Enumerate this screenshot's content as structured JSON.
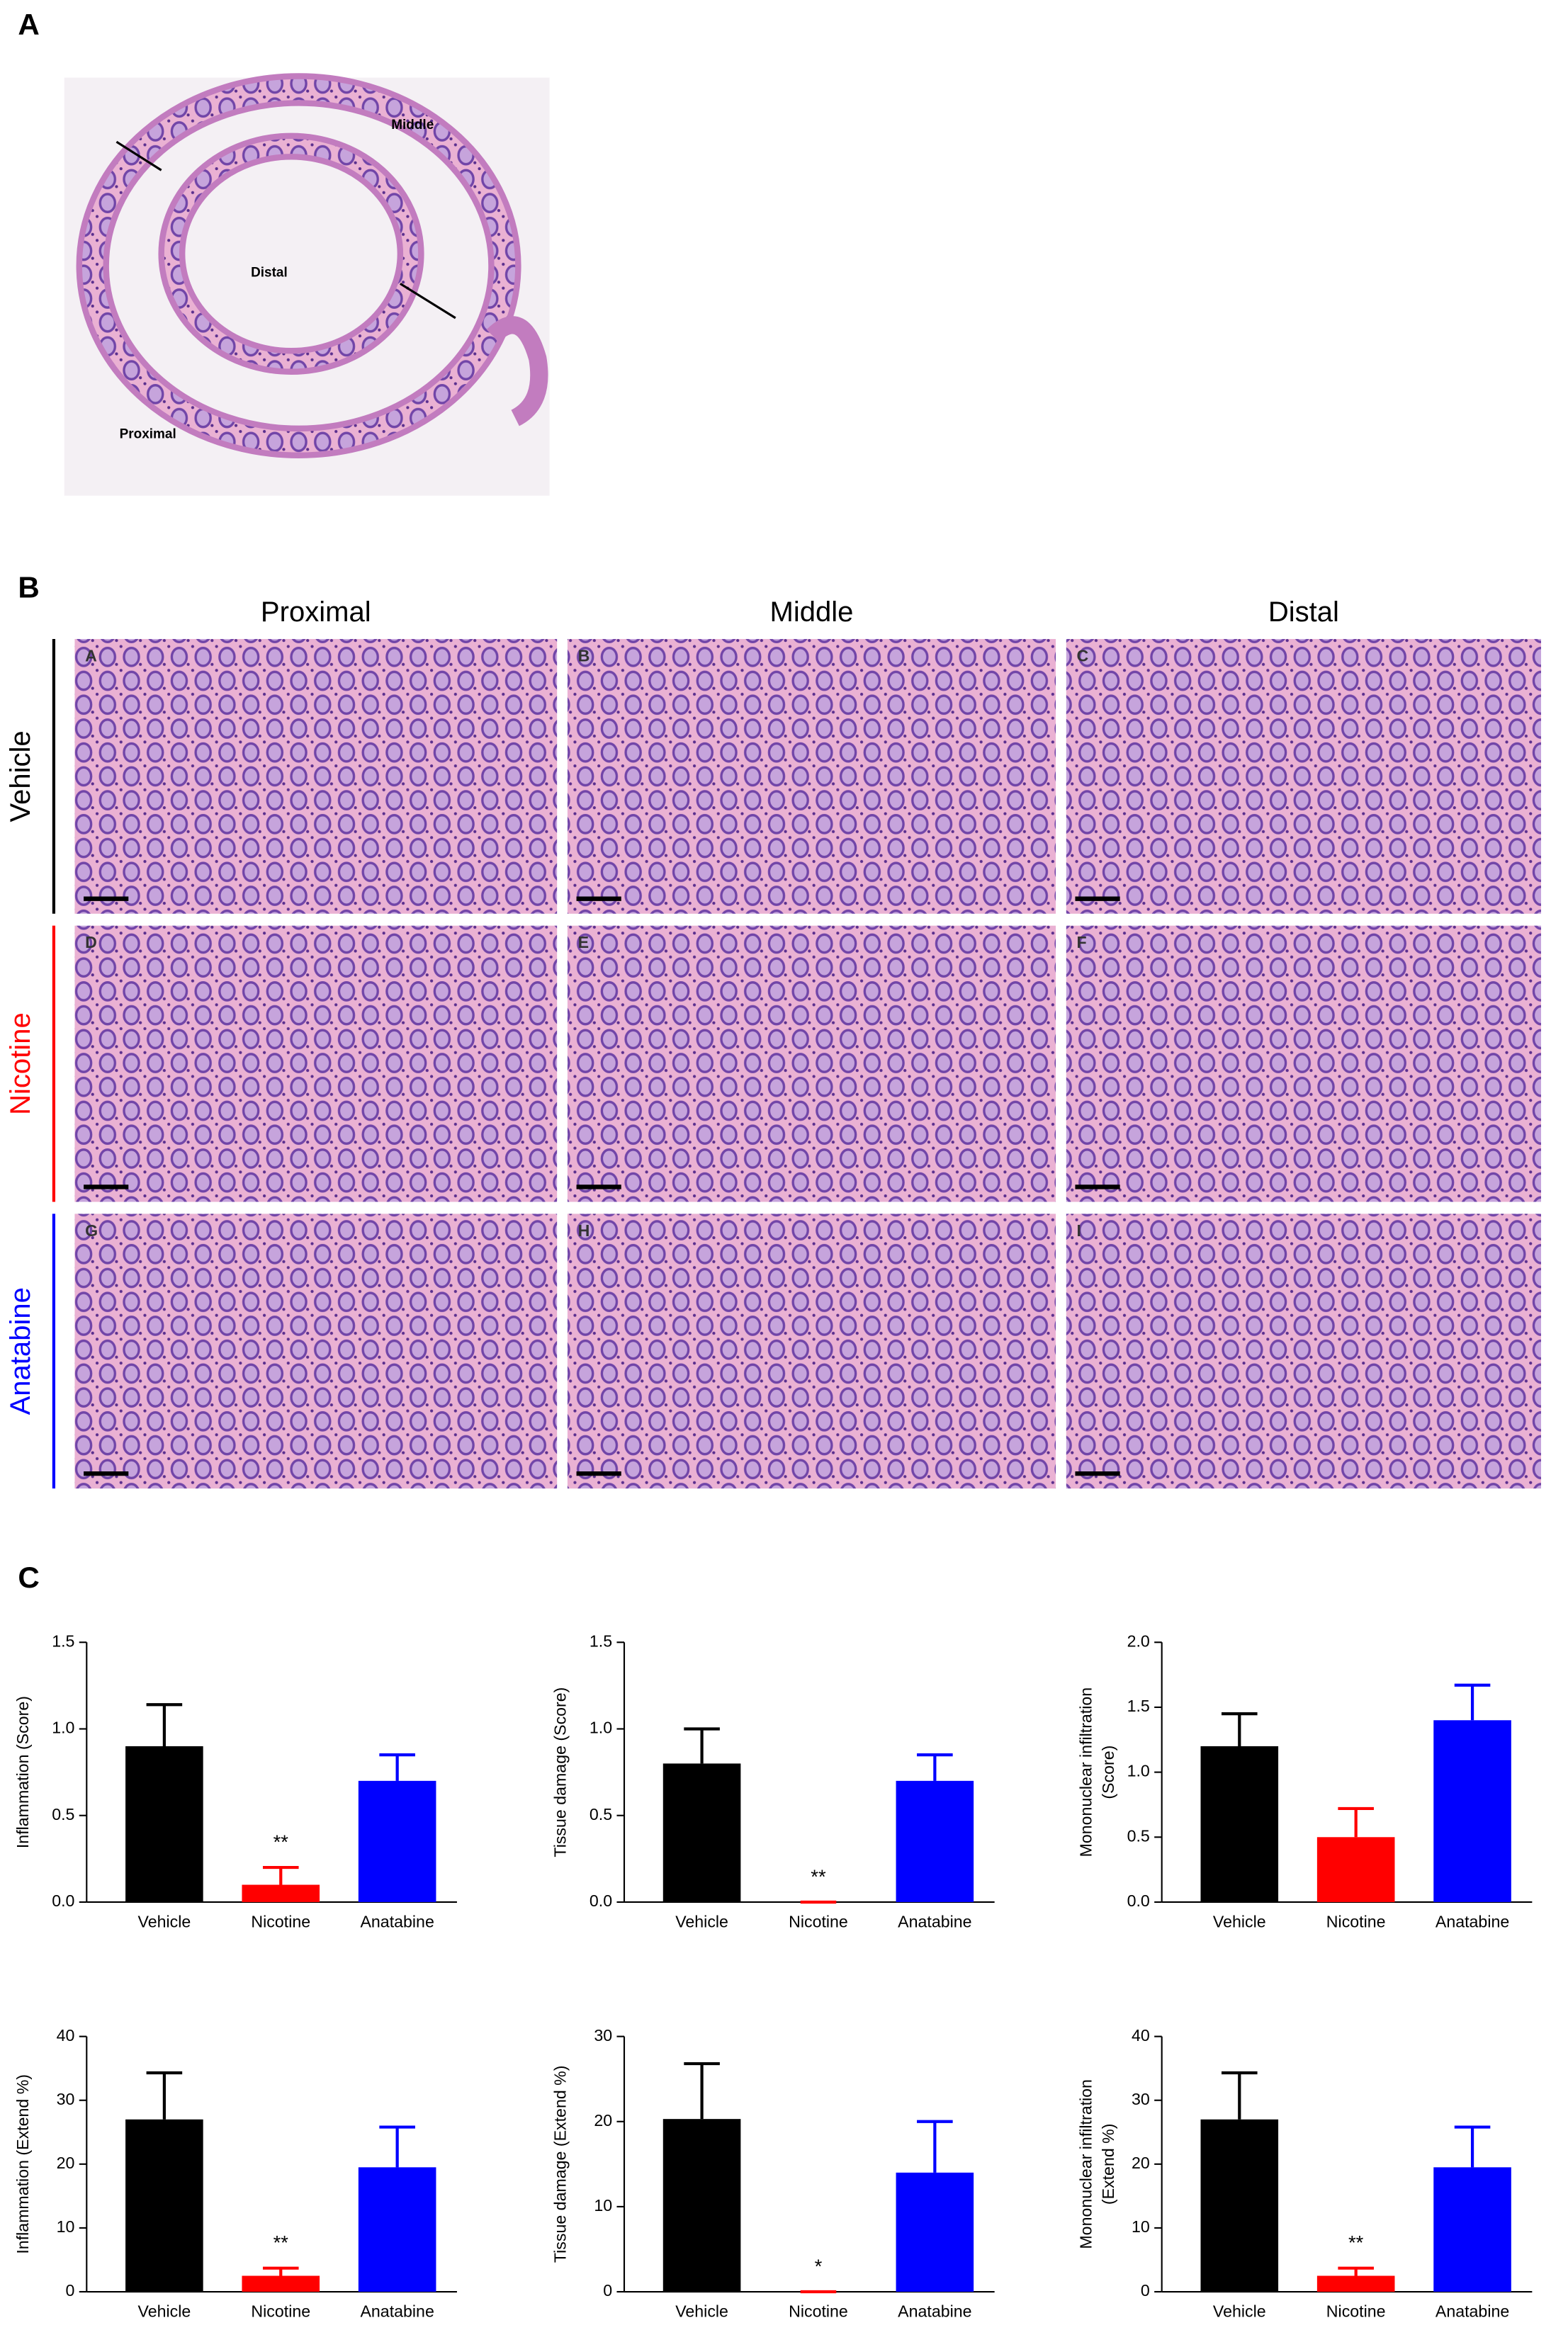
{
  "panel_labels": [
    "A",
    "B",
    "C"
  ],
  "panel_a": {
    "region_labels": [
      "Middle",
      "Distal",
      "Proximal"
    ]
  },
  "panel_b": {
    "columns": [
      "Proximal",
      "Middle",
      "Distal"
    ],
    "rows": [
      {
        "label": "Vehicle",
        "color": "#000000"
      },
      {
        "label": "Nicotine",
        "color": "#ff0000"
      },
      {
        "label": "Anatabine",
        "color": "#0000ff"
      }
    ],
    "subpanel_letters": [
      "A",
      "B",
      "C",
      "D",
      "E",
      "F",
      "G",
      "H",
      "I"
    ]
  },
  "chart_data": [
    {
      "type": "bar",
      "y_label": [
        "Inflammation (Score)"
      ],
      "categories": [
        "Vehicle",
        "Nicotine",
        "Anatabine"
      ],
      "values": [
        0.9,
        0.1,
        0.7
      ],
      "errors": [
        0.24,
        0.1,
        0.15
      ],
      "colors": [
        "#000000",
        "#ff0000",
        "#0000ff"
      ],
      "significance": [
        null,
        "**",
        null
      ],
      "ylim": [
        0,
        1.5
      ],
      "yticks": [
        {
          "value": 0,
          "label": "0.0"
        },
        0.5,
        {
          "value": 1,
          "label": "1.0"
        },
        1.5
      ]
    },
    {
      "type": "bar",
      "y_label": [
        "Tissue damage (Score)"
      ],
      "categories": [
        "Vehicle",
        "Nicotine",
        "Anatabine"
      ],
      "values": [
        0.8,
        0,
        0.7
      ],
      "errors": [
        0.2,
        0,
        0.15
      ],
      "colors": [
        "#000000",
        "#ff0000",
        "#0000ff"
      ],
      "significance": [
        null,
        "**",
        null
      ],
      "ylim": [
        0,
        1.5
      ],
      "yticks": [
        {
          "value": 0,
          "label": "0.0"
        },
        0.5,
        {
          "value": 1,
          "label": "1.0"
        },
        1.5
      ]
    },
    {
      "type": "bar",
      "y_label": [
        "Mononuclear infiltration",
        "(Score)"
      ],
      "categories": [
        "Vehicle",
        "Nicotine",
        "Anatabine"
      ],
      "values": [
        1.2,
        0.5,
        1.4
      ],
      "errors": [
        0.25,
        0.22,
        0.27
      ],
      "colors": [
        "#000000",
        "#ff0000",
        "#0000ff"
      ],
      "significance": [
        null,
        null,
        null
      ],
      "ylim": [
        0,
        2
      ],
      "yticks": [
        {
          "value": 0,
          "label": "0.0"
        },
        0.5,
        {
          "value": 1,
          "label": "1.0"
        },
        1.5,
        {
          "value": 2,
          "label": "2.0"
        }
      ]
    },
    {
      "type": "bar",
      "y_label": [
        "Inflammation (Extend %)"
      ],
      "categories": [
        "Vehicle",
        "Nicotine",
        "Anatabine"
      ],
      "values": [
        27,
        2.5,
        19.5
      ],
      "errors": [
        7.3,
        1.2,
        6.3
      ],
      "colors": [
        "#000000",
        "#ff0000",
        "#0000ff"
      ],
      "significance": [
        null,
        "**",
        null
      ],
      "ylim": [
        0,
        40
      ],
      "yticks": [
        0,
        10,
        20,
        30,
        40
      ]
    },
    {
      "type": "bar",
      "y_label": [
        "Tissue damage (Extend %)"
      ],
      "categories": [
        "Vehicle",
        "Nicotine",
        "Anatabine"
      ],
      "values": [
        20.3,
        0,
        14
      ],
      "errors": [
        6.5,
        0,
        6
      ],
      "colors": [
        "#000000",
        "#ff0000",
        "#0000ff"
      ],
      "significance": [
        null,
        "*",
        null
      ],
      "ylim": [
        0,
        30
      ],
      "yticks": [
        0,
        10,
        20,
        30
      ]
    },
    {
      "type": "bar",
      "y_label": [
        "Mononuclear infiltration",
        "(Extend %)"
      ],
      "categories": [
        "Vehicle",
        "Nicotine",
        "Anatabine"
      ],
      "values": [
        27,
        2.5,
        19.5
      ],
      "errors": [
        7.3,
        1.2,
        6.3
      ],
      "colors": [
        "#000000",
        "#ff0000",
        "#0000ff"
      ],
      "significance": [
        null,
        "**",
        null
      ],
      "ylim": [
        0,
        40
      ],
      "yticks": [
        0,
        10,
        20,
        30,
        40
      ]
    }
  ]
}
